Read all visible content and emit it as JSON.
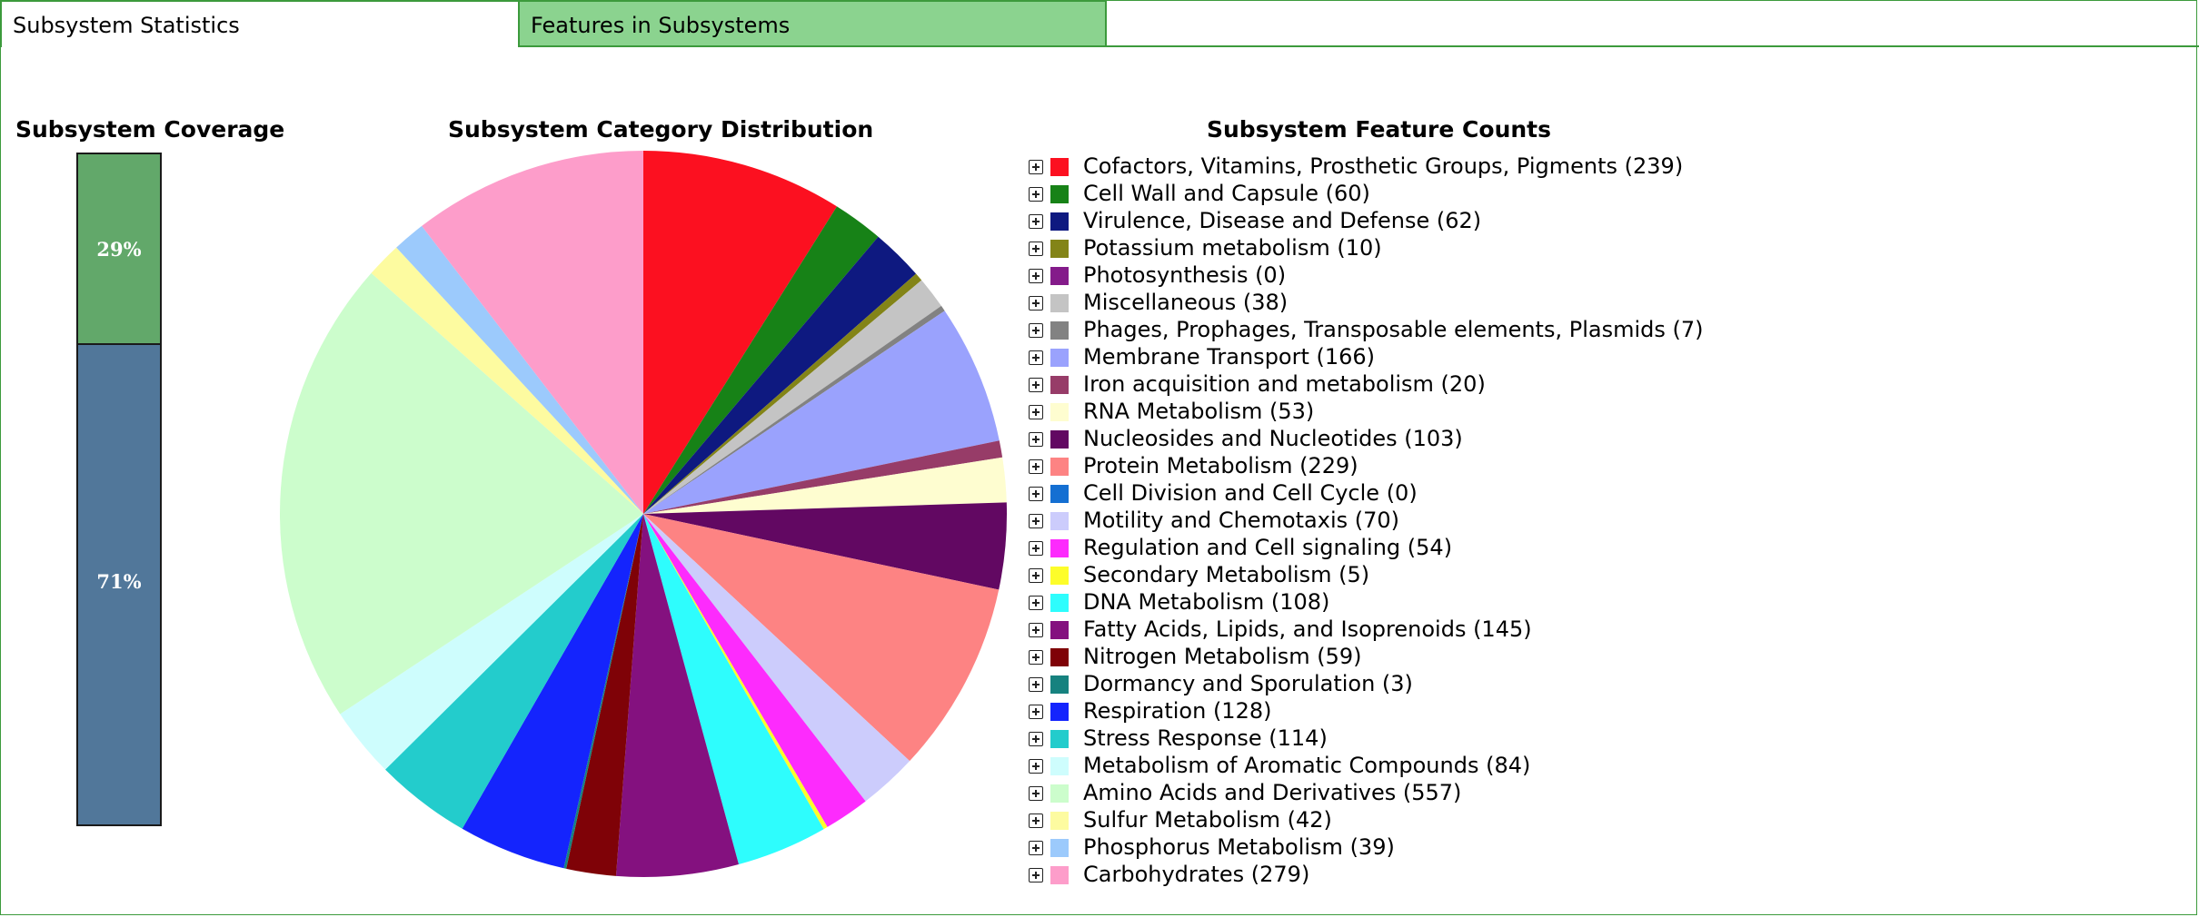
{
  "tabs": [
    {
      "label": "Subsystem Statistics",
      "active": true
    },
    {
      "label": "Features in Subsystems",
      "active": false
    }
  ],
  "coverage": {
    "title": "Subsystem Coverage",
    "segments": [
      {
        "label": "29%",
        "value": 29,
        "color": "#62a86a"
      },
      {
        "label": "71%",
        "value": 71,
        "color": "#51779a"
      }
    ]
  },
  "pie_title": "Subsystem Category Distribution",
  "counts_title": "Subsystem Feature Counts",
  "chart_data": {
    "type": "pie",
    "title": "Subsystem Category Distribution",
    "legend_title": "Subsystem Feature Counts",
    "legend_placement": "right",
    "slices": [
      {
        "name": "Cofactors, Vitamins, Prosthetic Groups, Pigments",
        "value": 239,
        "color": "#fc1020"
      },
      {
        "name": "Cell Wall and Capsule",
        "value": 60,
        "color": "#178217"
      },
      {
        "name": "Virulence, Disease and Defense",
        "value": 62,
        "color": "#0e1980"
      },
      {
        "name": "Potassium metabolism",
        "value": 10,
        "color": "#838417"
      },
      {
        "name": "Photosynthesis",
        "value": 0,
        "color": "#841b8a"
      },
      {
        "name": "Miscellaneous",
        "value": 38,
        "color": "#c4c4c4"
      },
      {
        "name": "Phages, Prophages, Transposable elements, Plasmids",
        "value": 7,
        "color": "#828282"
      },
      {
        "name": "Membrane Transport",
        "value": 166,
        "color": "#9aa2fd"
      },
      {
        "name": "Iron acquisition and metabolism",
        "value": 20,
        "color": "#973c68"
      },
      {
        "name": "RNA Metabolism",
        "value": 53,
        "color": "#fefdd0"
      },
      {
        "name": "Nucleosides and Nucleotides",
        "value": 103,
        "color": "#620862"
      },
      {
        "name": "Protein Metabolism",
        "value": 229,
        "color": "#fd8383"
      },
      {
        "name": "Cell Division and Cell Cycle",
        "value": 0,
        "color": "#146fd2"
      },
      {
        "name": "Motility and Chemotaxis",
        "value": 70,
        "color": "#ccccfc"
      },
      {
        "name": "Regulation and Cell signaling",
        "value": 54,
        "color": "#fd2bfd"
      },
      {
        "name": "Secondary Metabolism",
        "value": 5,
        "color": "#fdfd2a"
      },
      {
        "name": "DNA Metabolism",
        "value": 108,
        "color": "#2efdfd"
      },
      {
        "name": "Fatty Acids, Lipids, and Isoprenoids",
        "value": 145,
        "color": "#84117f"
      },
      {
        "name": "Nitrogen Metabolism",
        "value": 59,
        "color": "#7f0207"
      },
      {
        "name": "Dormancy and Sporulation",
        "value": 3,
        "color": "#16827f"
      },
      {
        "name": "Respiration",
        "value": 128,
        "color": "#1424fd"
      },
      {
        "name": "Stress Response",
        "value": 114,
        "color": "#23cccc"
      },
      {
        "name": "Metabolism of Aromatic Compounds",
        "value": 84,
        "color": "#cefdfd"
      },
      {
        "name": "Amino Acids and Derivatives",
        "value": 557,
        "color": "#ccfdcc"
      },
      {
        "name": "Sulfur Metabolism",
        "value": 42,
        "color": "#fdfba0"
      },
      {
        "name": "Phosphorus Metabolism",
        "value": 39,
        "color": "#9ccafc"
      },
      {
        "name": "Carbohydrates",
        "value": 279,
        "color": "#fd9dca"
      }
    ]
  }
}
